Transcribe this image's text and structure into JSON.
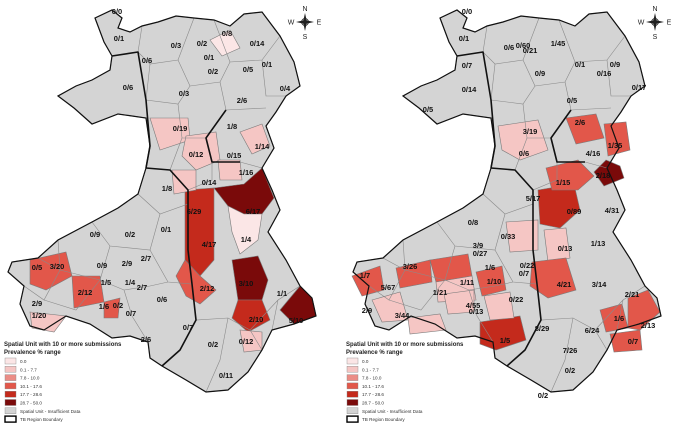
{
  "colors": {
    "0.0": "#fbe6e6",
    "0.1 - 7.7": "#f5c6c4",
    "7.8 - 10.0": "#eb8d86",
    "10.1 - 17.6": "#e2574a",
    "17.7 - 28.6": "#c42a1c",
    "28.7 - 50.0": "#7a0a0a",
    "insufficient": "#d4d4d4"
  },
  "maps": [
    {
      "labels": [
        "0/0",
        "0/1",
        "0/3",
        "0/2",
        "0/8",
        "0/14",
        "0/6",
        "0/1",
        "0/5",
        "0/1",
        "0/4",
        "0/3",
        "0/2",
        "0/6",
        "2/6",
        "1/8",
        "0/19",
        "0/12",
        "0/15",
        "1/14",
        "1/16",
        "0/14",
        "1/8",
        "6/29",
        "6/17",
        "0/1",
        "4/17",
        "1/4",
        "0/9",
        "0/2",
        "0/5",
        "3/20",
        "2/9",
        "0/9",
        "2/9",
        "2/12",
        "1/5",
        "1/4",
        "2/7",
        "0/2",
        "2/7",
        "2/12",
        "3/10",
        "1/1",
        "1/20",
        "1/6",
        "0/7",
        "0/6",
        "2/10",
        "5/10",
        "2/6",
        "0/7",
        "0/2",
        "0/12",
        "0/11"
      ],
      "legend": {
        "title": "Spatial Unit with 10 or more submissions",
        "subtitle": "Prevalence % range",
        "items": [
          "0.0",
          "0.1 - 7.7",
          "7.8 - 10.0",
          "10.1 - 17.6",
          "17.7 - 28.6",
          "28.7 - 50.0",
          "Spatial Unit - Insufficient Data",
          "TB Region Boundary"
        ]
      }
    },
    {
      "labels": [
        "0/0",
        "0/1",
        "0/60",
        "1/45",
        "0/21",
        "0/1",
        "0/6",
        "0/16",
        "0/9",
        "0/7",
        "0/9",
        "0/17",
        "0/5",
        "0/14",
        "0/5",
        "2/6",
        "3/19",
        "1/35",
        "4/16",
        "0/6",
        "1/15",
        "2/18",
        "5/17",
        "0/89",
        "4/31",
        "0/8",
        "0/33",
        "0/13",
        "1/13",
        "3/9",
        "0/27",
        "0/22",
        "1/6",
        "0/7",
        "1/7",
        "3/26",
        "5/67",
        "1/21",
        "1/11",
        "1/10",
        "4/21",
        "3/14",
        "2/9",
        "3/44",
        "4/55",
        "0/22",
        "0/13",
        "2/21",
        "1/5",
        "8/29",
        "1/6",
        "2/13",
        "6/24",
        "0/7",
        "7/26",
        "0/2",
        "0/2"
      ],
      "legend": {
        "title": "Spatial Unit with 10 or more submissions",
        "subtitle": "Prevalence % range",
        "items": [
          "0.0",
          "0.1 - 7.7",
          "7.8 - 10.0",
          "10.1 - 17.6",
          "17.7 - 28.6",
          "28.7 - 50.0",
          "Spatial Unit - Insufficient Data",
          "TB Region Boundary"
        ]
      }
    }
  ],
  "compass": {
    "n": "N",
    "s": "S",
    "e": "E",
    "w": "W"
  }
}
